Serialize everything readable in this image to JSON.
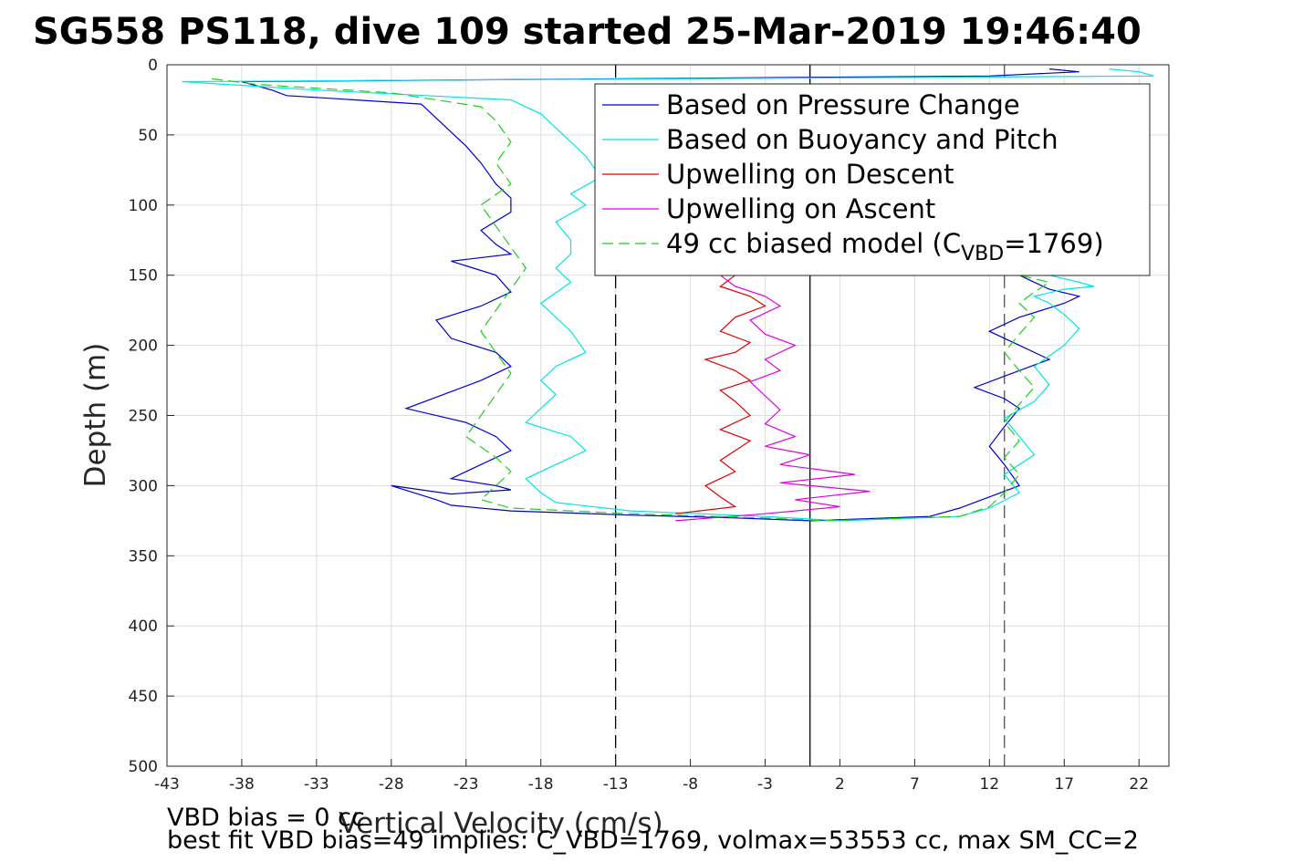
{
  "chart_data": {
    "type": "line",
    "title": "SG558 PS118, dive 109 started 25-Mar-2019 19:46:40",
    "xlabel": "Vertical Velocity (cm/s)",
    "ylabel": "Depth (m)",
    "xlim": [
      -43,
      24
    ],
    "ylim": [
      0,
      500
    ],
    "y_reversed": true,
    "grid": true,
    "legend_position": "top-right",
    "x_ticks": [
      "-43",
      "-38",
      "-33",
      "-28",
      "-23",
      "-18",
      "-13",
      "-8",
      "-3",
      "2",
      "7",
      "12",
      "17",
      "22"
    ],
    "x_tick_values": [
      -43,
      -38,
      -33,
      -28,
      -23,
      -18,
      -13,
      -8,
      -3,
      2,
      7,
      12,
      17,
      22
    ],
    "y_ticks": [
      "0",
      "50",
      "100",
      "150",
      "200",
      "250",
      "300",
      "350",
      "400",
      "450",
      "500"
    ],
    "y_tick_values": [
      0,
      50,
      100,
      150,
      200,
      250,
      300,
      350,
      400,
      450,
      500
    ],
    "reference_lines": [
      {
        "x": -13,
        "style": "dashed",
        "color": "#000000"
      },
      {
        "x": 0,
        "style": "solid",
        "color": "#000000"
      },
      {
        "x": 13,
        "style": "dashed",
        "color": "#555555"
      }
    ],
    "series": [
      {
        "name": "Based on Pressure Change",
        "color": "#0000cc",
        "style": "solid",
        "segments": [
          {
            "x": [
              16,
              18,
              12,
              -38,
              -36,
              -35,
              -26,
              -25,
              -24,
              -23,
              -22,
              -21,
              -20,
              -20,
              -22,
              -21,
              -20,
              -24,
              -21,
              -20,
              -22,
              -25,
              -24,
              -21,
              -20,
              -22,
              -27,
              -23,
              -21,
              -20,
              -22,
              -24,
              -21,
              -20,
              -24,
              -28,
              -25,
              -24,
              -20,
              -12,
              -5,
              0
            ],
            "y": [
              3,
              5,
              8,
              12,
              18,
              22,
              28,
              38,
              48,
              58,
              70,
              85,
              95,
              105,
              118,
              128,
              135,
              140,
              150,
              162,
              172,
              182,
              195,
              205,
              215,
              225,
              245,
              255,
              265,
              275,
              285,
              295,
              300,
              303,
              306,
              300,
              310,
              314,
              318,
              321,
              323,
              325
            ]
          },
          {
            "x": [
              0,
              8,
              10,
              14,
              13,
              12,
              13,
              14,
              13,
              11,
              13,
              16,
              14,
              12,
              14,
              17,
              18,
              16,
              15,
              14
            ],
            "y": [
              325,
              322,
              316,
              300,
              285,
              272,
              258,
              245,
              238,
              230,
              222,
              210,
              200,
              190,
              180,
              170,
              165,
              160,
              155,
              150
            ]
          }
        ]
      },
      {
        "name": "Based on Buoyancy and Pitch",
        "color": "#00e5e5",
        "style": "solid",
        "segments": [
          {
            "x": [
              20,
              22,
              23,
              -42,
              -33,
              -20,
              -18,
              -17,
              -16,
              -15,
              -14,
              -16,
              -15,
              -17,
              -16,
              -16,
              -17,
              -16,
              -18,
              -17,
              -16,
              -15,
              -17,
              -18,
              -17,
              -18,
              -19,
              -16,
              -15,
              -17,
              -19,
              -18,
              -17,
              -12,
              -3,
              2
            ],
            "y": [
              3,
              5,
              8,
              12,
              18,
              25,
              35,
              45,
              55,
              65,
              80,
              92,
              100,
              112,
              125,
              135,
              145,
              155,
              170,
              180,
              190,
              205,
              215,
              225,
              235,
              245,
              255,
              265,
              275,
              285,
              295,
              305,
              312,
              318,
              322,
              325
            ]
          },
          {
            "x": [
              2,
              10,
              12,
              14,
              13,
              15,
              14,
              13,
              15,
              16,
              15,
              17,
              18,
              17,
              16,
              15,
              17,
              19,
              18,
              16
            ],
            "y": [
              325,
              322,
              316,
              305,
              292,
              278,
              265,
              252,
              240,
              228,
              215,
              200,
              188,
              178,
              170,
              165,
              160,
              158,
              155,
              150
            ]
          }
        ]
      },
      {
        "name": "Upwelling on Descent",
        "color": "#e00000",
        "style": "solid",
        "segments": [
          {
            "x": [
              -5,
              -6,
              -4,
              -3,
              -5,
              -6,
              -4,
              -5,
              -7,
              -5,
              -4,
              -6,
              -5,
              -4,
              -6,
              -4,
              -5,
              -6,
              -5,
              -7,
              -6,
              -5,
              -9
            ],
            "y": [
              150,
              158,
              165,
              172,
              180,
              190,
              198,
              205,
              210,
              218,
              225,
              232,
              240,
              250,
              260,
              268,
              275,
              282,
              290,
              300,
              308,
              315,
              320
            ]
          }
        ]
      },
      {
        "name": "Upwelling on Ascent",
        "color": "#e000e0",
        "style": "solid",
        "segments": [
          {
            "x": [
              -6,
              -5,
              -3,
              -2,
              -4,
              -3,
              -1,
              -3,
              -2,
              -4,
              -3,
              -2,
              -3,
              -1,
              -3,
              0,
              -2,
              3,
              -2,
              4,
              -1,
              2,
              -3,
              -9
            ],
            "y": [
              150,
              158,
              165,
              172,
              182,
              192,
              200,
              210,
              218,
              226,
              236,
              246,
              256,
              265,
              272,
              278,
              285,
              292,
              298,
              304,
              310,
              315,
              320,
              325
            ]
          }
        ]
      },
      {
        "name": "49 cc biased model (C",
        "name_sub": "VBD",
        "name_suffix": "=1769)",
        "color": "#22cc22",
        "style": "dashed",
        "segments": [
          {
            "x": [
              -40,
              -37,
              -28,
              -22,
              -21,
              -20,
              -21,
              -20,
              -22,
              -21,
              -20,
              -19,
              -20,
              -21,
              -22,
              -21,
              -20,
              -21,
              -22,
              -23,
              -21,
              -20,
              -21,
              -22,
              -20,
              -12,
              -3,
              1
            ],
            "y": [
              10,
              14,
              20,
              30,
              40,
              55,
              70,
              85,
              100,
              115,
              130,
              145,
              160,
              175,
              190,
              205,
              220,
              235,
              250,
              265,
              280,
              290,
              300,
              310,
              316,
              320,
              323,
              325
            ]
          },
          {
            "x": [
              1,
              10,
              12,
              13,
              14,
              13,
              14,
              13,
              14,
              15,
              14,
              13,
              14,
              15,
              14,
              15,
              16,
              14
            ],
            "y": [
              325,
              322,
              315,
              305,
              292,
              280,
              268,
              255,
              242,
              230,
              218,
              205,
              192,
              180,
              170,
              162,
              155,
              150
            ]
          }
        ]
      }
    ]
  },
  "notes": {
    "vbd_bias": "VBD bias = 0 cc",
    "best_fit": "best fit VBD bias=49 implies: C_VBD=1769, volmax=53553 cc, max SM_CC=2"
  }
}
